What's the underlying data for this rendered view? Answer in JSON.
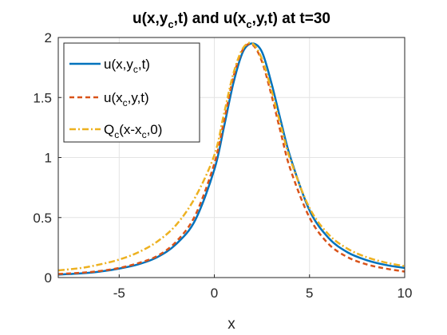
{
  "chart_data": {
    "type": "line",
    "title": {
      "main1": "u(x,y",
      "sub1": "c",
      "main2": ",t) and u(x",
      "sub2": "c",
      "main3": ",y,t) at t=30"
    },
    "xlabel": "x",
    "ylabel": "",
    "xlim": [
      -8.2,
      10
    ],
    "ylim": [
      0,
      2
    ],
    "xticks": [
      -5,
      0,
      5,
      10
    ],
    "xtick_labels": [
      "-5",
      "0",
      "5",
      "10"
    ],
    "yticks": [
      0,
      0.5,
      1,
      1.5,
      2
    ],
    "ytick_labels": [
      "0",
      "0.5",
      "1",
      "1.5",
      "2"
    ],
    "grid": true,
    "legend_placement": "top-left",
    "x": [
      -8.2,
      -7,
      -6,
      -5,
      -4,
      -3,
      -2,
      -1,
      0,
      0.5,
      1,
      1.5,
      2,
      2.5,
      3,
      3.5,
      4,
      5,
      6,
      7,
      8,
      9,
      10
    ],
    "series": [
      {
        "legend": {
          "main": "u(x,y",
          "sub": "c",
          "tail": ",t)"
        },
        "color": "#0072BD",
        "style": "solid",
        "values": [
          0.025,
          0.035,
          0.05,
          0.075,
          0.11,
          0.17,
          0.28,
          0.48,
          0.9,
          1.25,
          1.62,
          1.88,
          1.95,
          1.88,
          1.62,
          1.3,
          1.0,
          0.56,
          0.33,
          0.21,
          0.145,
          0.105,
          0.08
        ]
      },
      {
        "legend": {
          "main": "u(x",
          "sub": "c",
          "tail": ",y,t)"
        },
        "color": "#D95319",
        "style": "dashed",
        "values": [
          0.03,
          0.04,
          0.055,
          0.08,
          0.12,
          0.18,
          0.3,
          0.52,
          0.95,
          1.3,
          1.67,
          1.9,
          1.94,
          1.8,
          1.52,
          1.2,
          0.9,
          0.5,
          0.28,
          0.17,
          0.11,
          0.075,
          0.05
        ]
      },
      {
        "legend": {
          "main": "Q",
          "sub": "c",
          "tail": "(x-x",
          "sub2": "c",
          "tail2": ",0)"
        },
        "color": "#EDB120",
        "style": "dashdot",
        "values": [
          0.06,
          0.08,
          0.11,
          0.15,
          0.21,
          0.3,
          0.44,
          0.67,
          1.02,
          1.36,
          1.7,
          1.91,
          1.95,
          1.82,
          1.56,
          1.26,
          0.98,
          0.58,
          0.36,
          0.24,
          0.17,
          0.125,
          0.095
        ]
      }
    ]
  }
}
